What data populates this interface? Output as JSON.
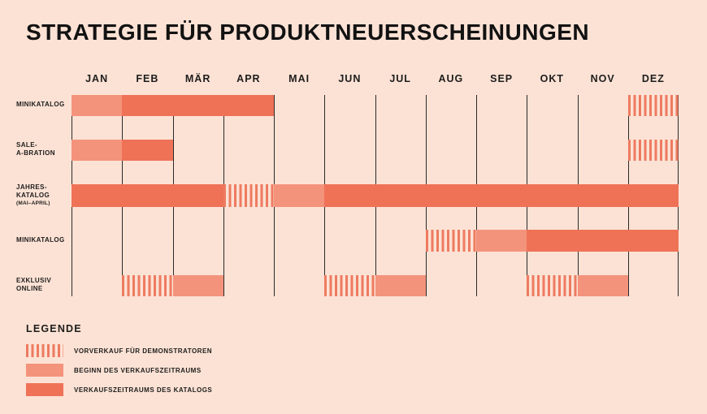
{
  "title": "STRATEGIE FÜR PRODUKTNEUERSCHEINUNGEN",
  "colors": {
    "background": "#fce2d5",
    "presale_stripe": "#ee7b60",
    "start_fill": "#f4937c",
    "sale_fill": "#ef7257",
    "text": "#1d1d1b",
    "gridline": "#2b2b28"
  },
  "chart_data": {
    "type": "gantt",
    "title": "STRATEGIE FÜR PRODUKTNEUERSCHEINUNGEN",
    "months": [
      "JAN",
      "FEB",
      "MÄR",
      "APR",
      "MAI",
      "JUN",
      "JUL",
      "AUG",
      "SEP",
      "OKT",
      "NOV",
      "DEZ"
    ],
    "segment_kinds": {
      "presale": "VORVERKAUF FÜR DEMONSTRATOREN",
      "start": "BEGINN DES VERKAUFSZEITRAUMS",
      "sale": "VERKAUFSZEITRAUMS DES KATALOGS"
    },
    "rows": [
      {
        "label": "MINIKATALOG",
        "label_lines": [
          "MINIKATALOG"
        ],
        "segments": [
          {
            "start_month": "JAN",
            "end_month": "JAN",
            "start": 0,
            "end": 1,
            "kind": "start"
          },
          {
            "start_month": "FEB",
            "end_month": "APR",
            "start": 1,
            "end": 4,
            "kind": "sale"
          },
          {
            "start_month": "DEZ",
            "end_month": "DEZ",
            "start": 11,
            "end": 12,
            "kind": "presale"
          }
        ]
      },
      {
        "label": "SALE-A-BRATION",
        "label_lines": [
          "SALE-",
          "A-BRATION"
        ],
        "segments": [
          {
            "start_month": "JAN",
            "end_month": "JAN",
            "start": 0,
            "end": 1,
            "kind": "start"
          },
          {
            "start_month": "FEB",
            "end_month": "FEB",
            "start": 1,
            "end": 2,
            "kind": "sale"
          },
          {
            "start_month": "DEZ",
            "end_month": "DEZ",
            "start": 11,
            "end": 12,
            "kind": "presale"
          }
        ]
      },
      {
        "label": "JAHRES-KATALOG (MAI–APRIL)",
        "label_lines": [
          "JAHRES-",
          "KATALOG",
          "(MAI–APRIL)"
        ],
        "segments": [
          {
            "start_month": "JAN",
            "end_month": "MÄR",
            "start": 0,
            "end": 3,
            "kind": "sale"
          },
          {
            "start_month": "APR",
            "end_month": "APR",
            "start": 3,
            "end": 4,
            "kind": "presale"
          },
          {
            "start_month": "MAI",
            "end_month": "MAI",
            "start": 4,
            "end": 5,
            "kind": "start"
          },
          {
            "start_month": "JUN",
            "end_month": "DEZ",
            "start": 5,
            "end": 12,
            "kind": "sale"
          }
        ]
      },
      {
        "label": "MINIKATALOG",
        "label_lines": [
          "MINIKATALOG"
        ],
        "segments": [
          {
            "start_month": "AUG",
            "end_month": "AUG",
            "start": 7,
            "end": 8,
            "kind": "presale"
          },
          {
            "start_month": "SEP",
            "end_month": "SEP",
            "start": 8,
            "end": 9,
            "kind": "start"
          },
          {
            "start_month": "OKT",
            "end_month": "DEZ",
            "start": 9,
            "end": 12,
            "kind": "sale"
          }
        ]
      },
      {
        "label": "EXKLUSIV ONLINE",
        "label_lines": [
          "EXKLUSIV",
          "ONLINE"
        ],
        "segments": [
          {
            "start_month": "FEB",
            "end_month": "FEB",
            "start": 1,
            "end": 2,
            "kind": "presale"
          },
          {
            "start_month": "MÄR",
            "end_month": "MÄR",
            "start": 2,
            "end": 3,
            "kind": "start"
          },
          {
            "start_month": "JUN",
            "end_month": "JUN",
            "start": 5,
            "end": 6,
            "kind": "presale"
          },
          {
            "start_month": "JUL",
            "end_month": "JUL",
            "start": 6,
            "end": 7,
            "kind": "start"
          },
          {
            "start_month": "OKT",
            "end_month": "OKT",
            "start": 9,
            "end": 10,
            "kind": "presale"
          },
          {
            "start_month": "NOV",
            "end_month": "NOV",
            "start": 10,
            "end": 11,
            "kind": "start"
          }
        ]
      }
    ]
  },
  "legend": {
    "heading": "LEGENDE",
    "items": [
      {
        "kind": "presale",
        "label": "VORVERKAUF FÜR DEMONSTRATOREN"
      },
      {
        "kind": "start",
        "label": "BEGINN DES VERKAUFSZEITRAUMS"
      },
      {
        "kind": "sale",
        "label": "VERKAUFSZEITRAUMS DES KATALOGS"
      }
    ]
  }
}
